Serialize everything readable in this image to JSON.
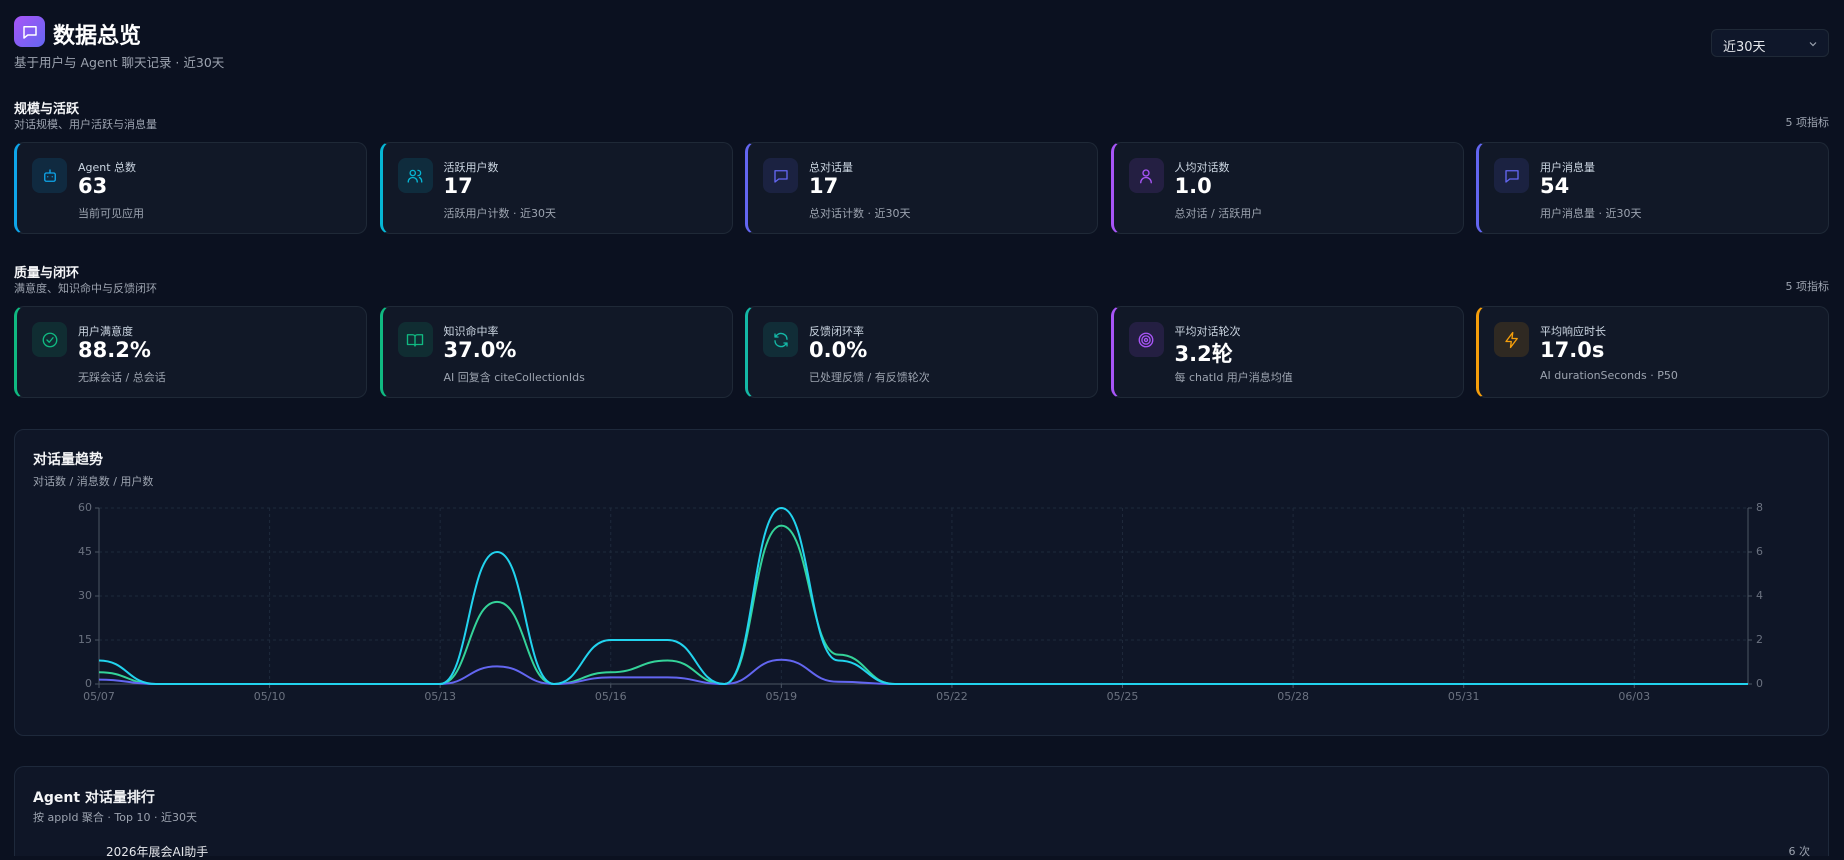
{
  "header": {
    "title": "数据总览",
    "subtitle": "基于用户与 Agent 聊天记录 · 近30天",
    "range": "近30天"
  },
  "sections": [
    {
      "title": "规模与活跃",
      "subtitle": "对话规模、用户活跃与消息量",
      "count": "5 项指标",
      "cards": [
        {
          "label": "Agent 总数",
          "value": "63",
          "note": "当前可见应用"
        },
        {
          "label": "活跃用户数",
          "value": "17",
          "note": "活跃用户计数 · 近30天"
        },
        {
          "label": "总对话量",
          "value": "17",
          "note": "总对话计数 · 近30天"
        },
        {
          "label": "人均对话数",
          "value": "1.0",
          "note": "总对话 / 活跃用户"
        },
        {
          "label": "用户消息量",
          "value": "54",
          "note": "用户消息量 · 近30天"
        }
      ]
    },
    {
      "title": "质量与闭环",
      "subtitle": "满意度、知识命中与反馈闭环",
      "count": "5 项指标",
      "cards": [
        {
          "label": "用户满意度",
          "value": "88.2%",
          "note": "无踩会话 / 总会话"
        },
        {
          "label": "知识命中率",
          "value": "37.0%",
          "note": "AI 回复含 citeCollectionIds"
        },
        {
          "label": "反馈闭环率",
          "value": "0.0%",
          "note": "已处理反馈 / 有反馈轮次"
        },
        {
          "label": "平均对话轮次",
          "value": "3.2轮",
          "note": "每 chatId 用户消息均值"
        },
        {
          "label": "平均响应时长",
          "value": "17.0s",
          "note": "AI durationSeconds · P50"
        }
      ]
    }
  ],
  "chart_data": {
    "type": "line",
    "title": "对话量趋势",
    "subtitle": "对话数 / 消息数 / 用户数",
    "categories": [
      "05/07",
      null,
      null,
      "05/10",
      null,
      null,
      "05/13",
      null,
      null,
      "05/16",
      null,
      null,
      "05/19",
      null,
      null,
      "05/22",
      null,
      null,
      "05/25",
      null,
      null,
      "05/28",
      null,
      null,
      "05/31",
      null,
      null,
      "06/03",
      null,
      null
    ],
    "series": [
      {
        "color": "#34d399",
        "values": [
          4,
          0,
          0,
          0,
          0,
          0,
          0,
          28,
          0,
          4,
          8,
          0,
          54,
          10,
          0,
          0,
          0,
          0,
          0,
          0,
          0,
          0,
          0,
          0,
          0,
          0,
          0,
          0,
          0,
          0
        ]
      },
      {
        "color": "#6366f1",
        "axis": "y2",
        "values": [
          0.2,
          0,
          0,
          0,
          0,
          0,
          0,
          0.8,
          0,
          0.3,
          0.3,
          0,
          1.1,
          0.1,
          0,
          0,
          0,
          0,
          0,
          0,
          0,
          0,
          0,
          0,
          0,
          0,
          0,
          0,
          0,
          0
        ]
      },
      {
        "color": "#22d3ee",
        "values": [
          8,
          0,
          0,
          0,
          0,
          0,
          0,
          45,
          0,
          15,
          15,
          0,
          60,
          8,
          0,
          0,
          0,
          0,
          0,
          0,
          0,
          0,
          0,
          0,
          0,
          0,
          0,
          0,
          0,
          0
        ]
      }
    ],
    "ylim": [
      0,
      60
    ],
    "yticks": [
      0,
      15,
      30,
      45,
      60
    ],
    "y2lim": [
      0,
      8
    ],
    "y2ticks": [
      0,
      2,
      4,
      6,
      8
    ],
    "grid": true
  },
  "ranking": {
    "title": "Agent 对话量排行",
    "subtitle": "按 appId 聚合 · Top 10 · 近30天",
    "items": [
      {
        "name": "2026年展会AI助手",
        "count": "6 次"
      }
    ]
  }
}
